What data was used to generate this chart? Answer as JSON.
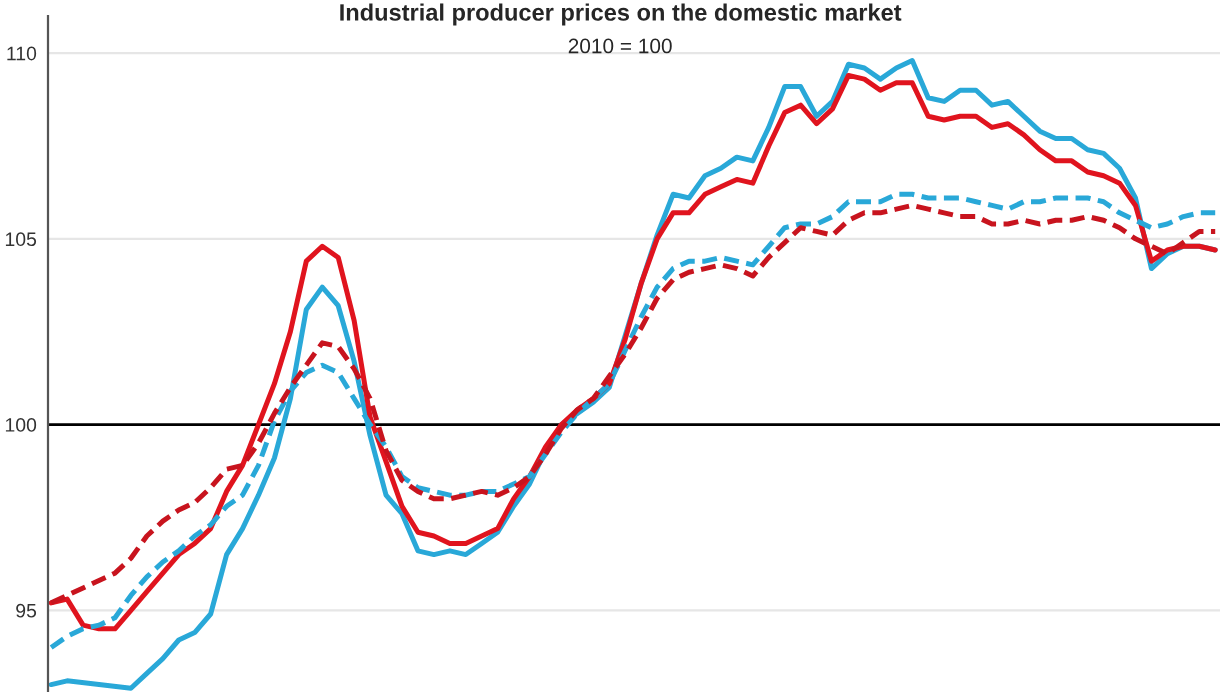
{
  "chart_data": {
    "type": "line",
    "title": "Industrial producer prices on the domestic market",
    "subtitle": "2010 = 100",
    "categories": [
      null,
      null,
      null,
      null,
      null,
      null,
      null,
      null,
      null,
      null,
      null,
      null,
      null,
      null,
      null,
      null,
      null,
      null,
      null,
      null,
      null,
      null,
      null,
      null,
      null,
      null,
      null,
      null,
      null,
      null,
      null,
      null,
      null,
      null,
      null,
      null,
      null,
      null,
      null,
      null,
      null,
      null,
      null,
      null,
      null,
      null,
      null,
      null,
      null,
      null,
      null,
      null,
      null,
      null,
      null,
      null,
      null,
      null,
      null,
      null,
      null,
      null,
      null,
      null,
      null,
      null,
      null,
      null,
      null,
      null,
      null,
      null,
      null,
      null
    ],
    "series": [
      {
        "color": "#29a8d8",
        "line_style": "solid",
        "values": [
          93.0,
          93.1,
          null,
          null,
          null,
          92.9,
          93.3,
          93.7,
          94.2,
          94.4,
          94.9,
          96.5,
          97.2,
          98.1,
          99.1,
          100.7,
          103.1,
          103.7,
          103.2,
          101.7,
          99.7,
          98.1,
          97.6,
          96.6,
          96.5,
          96.6,
          96.5,
          96.8,
          97.1,
          97.8,
          98.4,
          99.3,
          100.0,
          100.3,
          100.6,
          101.0,
          102.4,
          103.8,
          105.1,
          106.2,
          106.1,
          106.7,
          106.9,
          107.2,
          107.1,
          108.0,
          109.1,
          109.1,
          108.3,
          108.7,
          109.7,
          109.6,
          109.3,
          109.6,
          109.8,
          108.8,
          108.7,
          109.0,
          109.0,
          108.6,
          108.7,
          108.3,
          107.9,
          107.7,
          107.7,
          107.4,
          107.3,
          106.9,
          106.1,
          104.2,
          104.6,
          104.8,
          104.8,
          104.7
        ]
      },
      {
        "color": "#e0141e",
        "line_style": "solid",
        "values": [
          95.2,
          95.3,
          94.6,
          94.5,
          94.5,
          95.0,
          95.5,
          96.0,
          96.5,
          96.8,
          97.2,
          98.2,
          98.9,
          100.0,
          101.1,
          102.5,
          104.4,
          104.8,
          104.5,
          102.8,
          100.2,
          99.0,
          97.8,
          97.1,
          97.0,
          96.8,
          96.8,
          97.0,
          97.2,
          98.0,
          98.6,
          99.4,
          100.0,
          100.4,
          100.7,
          101.1,
          102.3,
          103.8,
          105.0,
          105.7,
          105.7,
          106.2,
          106.4,
          106.6,
          106.5,
          107.5,
          108.4,
          108.6,
          108.1,
          108.5,
          109.4,
          109.3,
          109.0,
          109.2,
          109.2,
          108.3,
          108.2,
          108.3,
          108.3,
          108.0,
          108.1,
          107.8,
          107.4,
          107.1,
          107.1,
          106.8,
          106.7,
          106.5,
          105.9,
          104.4,
          104.7,
          104.8,
          104.8,
          104.7
        ]
      },
      {
        "color": "#29a8d8",
        "line_style": "dashed",
        "values": [
          94.0,
          94.3,
          94.5,
          94.6,
          94.8,
          95.4,
          95.9,
          96.3,
          96.6,
          97.0,
          97.3,
          97.8,
          98.1,
          98.9,
          100.1,
          100.9,
          101.4,
          101.6,
          101.4,
          100.7,
          100.0,
          99.4,
          98.6,
          98.3,
          98.2,
          98.1,
          98.1,
          98.2,
          98.2,
          98.4,
          98.6,
          99.2,
          99.8,
          100.3,
          100.7,
          101.1,
          102.0,
          102.9,
          103.7,
          104.2,
          104.4,
          104.4,
          104.5,
          104.4,
          104.3,
          104.8,
          105.3,
          105.4,
          105.4,
          105.6,
          106.0,
          106.0,
          106.0,
          106.2,
          106.2,
          106.1,
          106.1,
          106.1,
          106.0,
          105.9,
          105.8,
          106.0,
          106.0,
          106.1,
          106.1,
          106.1,
          106.0,
          105.7,
          105.5,
          105.3,
          105.4,
          105.6,
          105.7,
          105.7
        ]
      },
      {
        "color": "#c8141e",
        "line_style": "dashed",
        "values": [
          95.2,
          95.4,
          95.6,
          95.8,
          96.0,
          96.4,
          97.0,
          97.4,
          97.7,
          97.9,
          98.3,
          98.8,
          98.9,
          99.5,
          100.3,
          101.0,
          101.6,
          102.2,
          102.1,
          101.5,
          100.7,
          99.3,
          98.5,
          98.2,
          98.0,
          98.0,
          98.1,
          98.2,
          98.1,
          98.3,
          98.6,
          99.2,
          99.9,
          100.4,
          100.7,
          101.3,
          101.9,
          102.6,
          103.4,
          103.9,
          104.1,
          104.2,
          104.3,
          104.2,
          104.0,
          104.5,
          104.9,
          105.3,
          105.2,
          105.1,
          105.5,
          105.7,
          105.7,
          105.8,
          105.9,
          105.8,
          105.7,
          105.6,
          105.6,
          105.4,
          105.4,
          105.5,
          105.4,
          105.5,
          105.5,
          105.6,
          105.5,
          105.3,
          105.0,
          104.8,
          104.6,
          104.9,
          105.2,
          105.2
        ]
      }
    ],
    "ylim": [
      92.8,
      111
    ],
    "yticks": [
      95,
      100,
      105,
      110
    ],
    "grid": "y",
    "tick_labels": "y",
    "marker": "none",
    "ref_lines": [
      {
        "axis": "y",
        "value": 100,
        "color": "#000000"
      }
    ]
  }
}
